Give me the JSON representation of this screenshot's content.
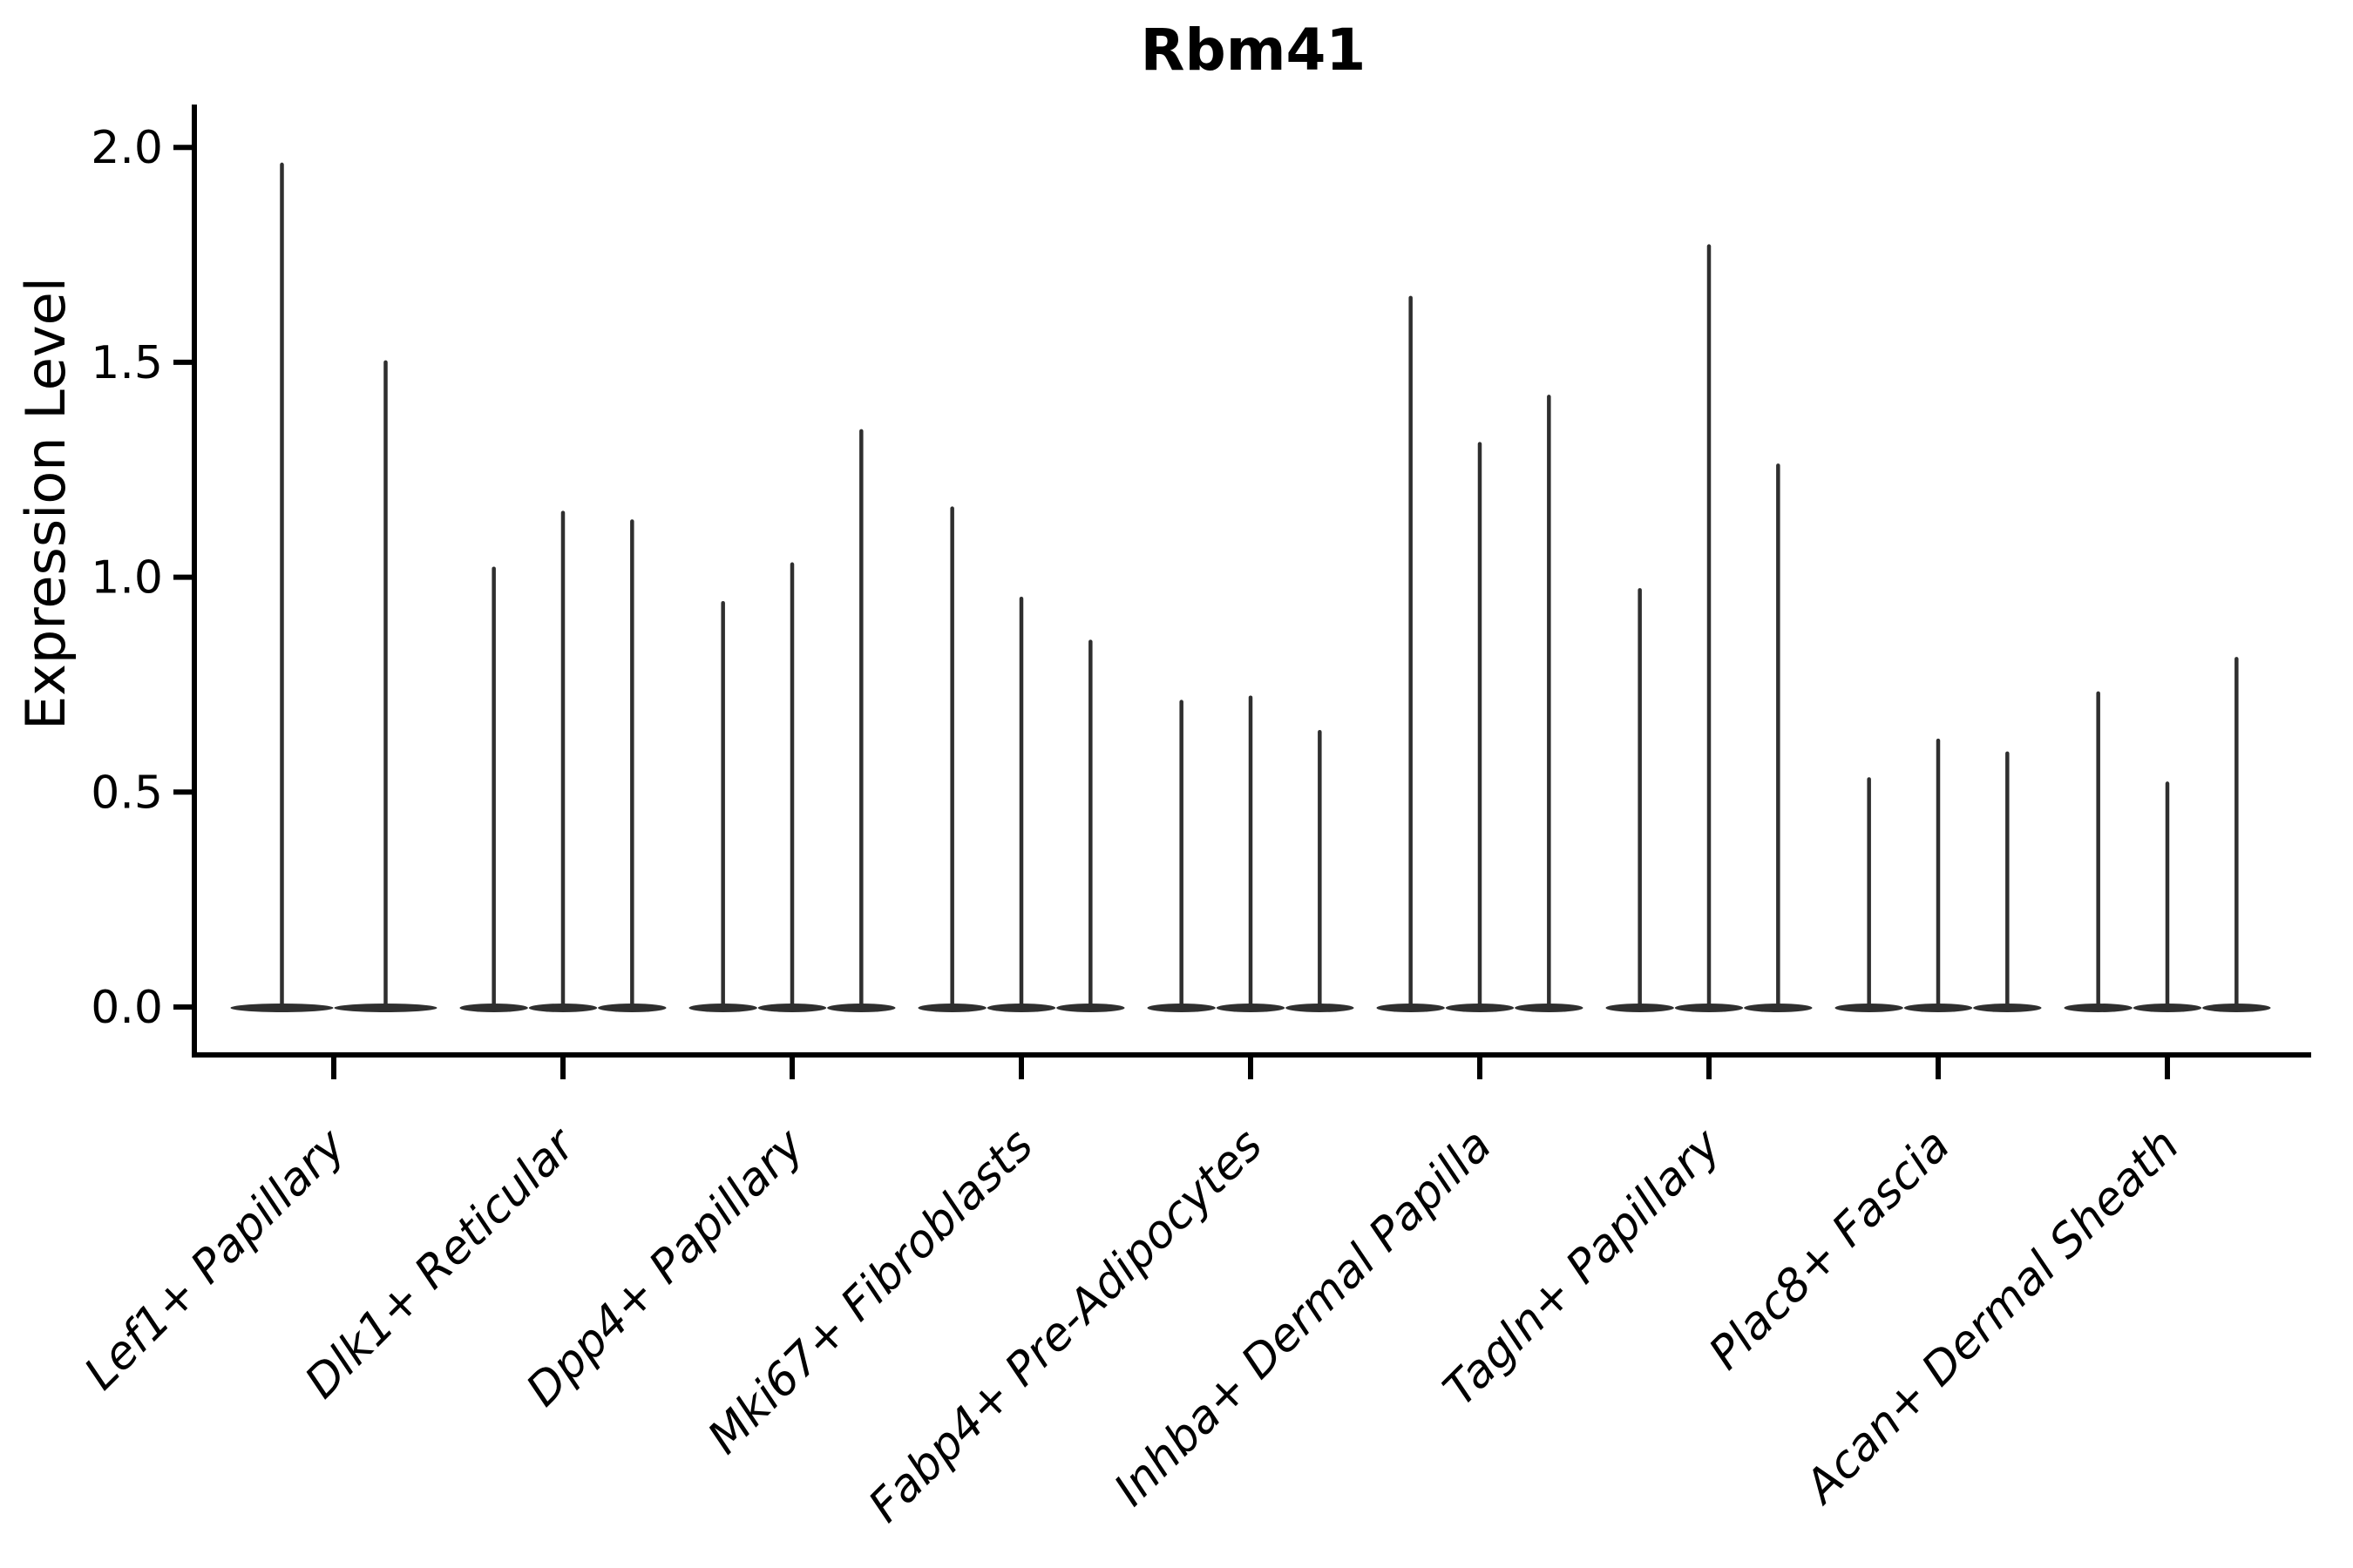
{
  "title": "Rbm41",
  "y_axis": {
    "label": "Expression Level",
    "tick_labels": [
      "0.0",
      "0.5",
      "1.0",
      "1.5",
      "2.0"
    ],
    "tick_values": [
      0.0,
      0.5,
      1.0,
      1.5,
      2.0
    ]
  },
  "x_axis": {
    "categories": [
      "Lef1+ Papillary",
      "Dlk1+ Reticular",
      "Dpp4+ Papillary",
      "Mki67+ Fibroblasts",
      "Fabp4+ Pre-Adipocytes",
      "Inhba+ Dermal Papilla",
      "Tagln+ Papillary",
      "Plac8+ Fascia",
      "Acan+ Dermal Sheath"
    ]
  },
  "colors": {
    "violin": "#2f2f2f",
    "axis": "#000000",
    "background": "#ffffff"
  },
  "chart_data": {
    "type": "violin",
    "title": "Rbm41",
    "xlabel": "",
    "ylabel": "Expression Level",
    "ylim": [
      0.0,
      2.0
    ],
    "y_ticks": [
      0.0,
      0.5,
      1.0,
      1.5,
      2.0
    ],
    "grid": false,
    "legend": "none",
    "x_tick_rotation_deg": 45,
    "categories": [
      "Lef1+ Papillary",
      "Dlk1+ Reticular",
      "Dpp4+ Papillary",
      "Mki67+ Fibroblasts",
      "Fabp4+ Pre-Adipocytes",
      "Inhba+ Dermal Papilla",
      "Tagln+ Papillary",
      "Plac8+ Fascia",
      "Acan+ Dermal Sheath"
    ],
    "description": "Very thin violins: dense mass at expression 0 (flat base) with a narrow spike up to the maximum expression value of each violin.",
    "series": [
      {
        "category": "Lef1+ Papillary",
        "spike_maxima": [
          1.96,
          1.5
        ]
      },
      {
        "category": "Dlk1+ Reticular",
        "spike_maxima": [
          1.02,
          1.15,
          1.13
        ]
      },
      {
        "category": "Dpp4+ Papillary",
        "spike_maxima": [
          0.94,
          1.03,
          1.34
        ]
      },
      {
        "category": "Mki67+ Fibroblasts",
        "spike_maxima": [
          1.16,
          0.95,
          0.85
        ]
      },
      {
        "category": "Fabp4+ Pre-Adipocytes",
        "spike_maxima": [
          0.71,
          0.72,
          0.64
        ]
      },
      {
        "category": "Inhba+ Dermal Papilla",
        "spike_maxima": [
          1.65,
          1.31,
          1.42
        ]
      },
      {
        "category": "Tagln+ Papillary",
        "spike_maxima": [
          0.97,
          1.77,
          1.26
        ]
      },
      {
        "category": "Plac8+ Fascia",
        "spike_maxima": [
          0.53,
          0.62,
          0.59
        ]
      },
      {
        "category": "Acan+ Dermal Sheath",
        "spike_maxima": [
          0.73,
          0.52,
          0.81
        ]
      }
    ]
  }
}
